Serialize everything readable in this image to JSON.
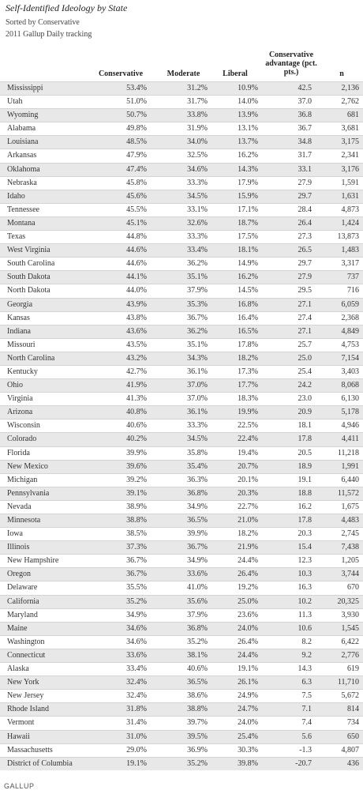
{
  "title": "Self-Identified Ideology by State",
  "subtitle_1": "Sorted by Conservative",
  "subtitle_2": "2011 Gallup Daily tracking",
  "logo": "GALLUP",
  "chart_data": {
    "type": "table",
    "columns": [
      "",
      "Conservative",
      "Moderate",
      "Liberal",
      "Conservative advantage (pct. pts.)",
      "n"
    ],
    "rows": [
      [
        "Mississippi",
        "53.4%",
        "31.2%",
        "10.9%",
        "42.5",
        "2,136"
      ],
      [
        "Utah",
        "51.0%",
        "31.7%",
        "14.0%",
        "37.0",
        "2,762"
      ],
      [
        "Wyoming",
        "50.7%",
        "33.8%",
        "13.9%",
        "36.8",
        "681"
      ],
      [
        "Alabama",
        "49.8%",
        "31.9%",
        "13.1%",
        "36.7",
        "3,681"
      ],
      [
        "Louisiana",
        "48.5%",
        "34.0%",
        "13.7%",
        "34.8",
        "3,175"
      ],
      [
        "Arkansas",
        "47.9%",
        "32.5%",
        "16.2%",
        "31.7",
        "2,341"
      ],
      [
        "Oklahoma",
        "47.4%",
        "34.6%",
        "14.3%",
        "33.1",
        "3,176"
      ],
      [
        "Nebraska",
        "45.8%",
        "33.3%",
        "17.9%",
        "27.9",
        "1,591"
      ],
      [
        "Idaho",
        "45.6%",
        "34.5%",
        "15.9%",
        "29.7",
        "1,631"
      ],
      [
        "Tennessee",
        "45.5%",
        "33.1%",
        "17.1%",
        "28.4",
        "4,873"
      ],
      [
        "Montana",
        "45.1%",
        "32.6%",
        "18.7%",
        "26.4",
        "1,424"
      ],
      [
        "Texas",
        "44.8%",
        "33.3%",
        "17.5%",
        "27.3",
        "13,873"
      ],
      [
        "West Virginia",
        "44.6%",
        "33.4%",
        "18.1%",
        "26.5",
        "1,483"
      ],
      [
        "South Carolina",
        "44.6%",
        "36.2%",
        "14.9%",
        "29.7",
        "3,317"
      ],
      [
        "South Dakota",
        "44.1%",
        "35.1%",
        "16.2%",
        "27.9",
        "737"
      ],
      [
        "North Dakota",
        "44.0%",
        "37.9%",
        "14.5%",
        "29.5",
        "716"
      ],
      [
        "Georgia",
        "43.9%",
        "35.3%",
        "16.8%",
        "27.1",
        "6,059"
      ],
      [
        "Kansas",
        "43.8%",
        "36.7%",
        "16.4%",
        "27.4",
        "2,368"
      ],
      [
        "Indiana",
        "43.6%",
        "36.2%",
        "16.5%",
        "27.1",
        "4,849"
      ],
      [
        "Missouri",
        "43.5%",
        "35.1%",
        "17.8%",
        "25.7",
        "4,753"
      ],
      [
        "North Carolina",
        "43.2%",
        "34.3%",
        "18.2%",
        "25.0",
        "7,154"
      ],
      [
        "Kentucky",
        "42.7%",
        "36.1%",
        "17.3%",
        "25.4",
        "3,403"
      ],
      [
        "Ohio",
        "41.9%",
        "37.0%",
        "17.7%",
        "24.2",
        "8,068"
      ],
      [
        "Virginia",
        "41.3%",
        "37.0%",
        "18.3%",
        "23.0",
        "6,130"
      ],
      [
        "Arizona",
        "40.8%",
        "36.1%",
        "19.9%",
        "20.9",
        "5,178"
      ],
      [
        "Wisconsin",
        "40.6%",
        "33.3%",
        "22.5%",
        "18.1",
        "4,946"
      ],
      [
        "Colorado",
        "40.2%",
        "34.5%",
        "22.4%",
        "17.8",
        "4,411"
      ],
      [
        "Florida",
        "39.9%",
        "35.8%",
        "19.4%",
        "20.5",
        "11,218"
      ],
      [
        "New Mexico",
        "39.6%",
        "35.4%",
        "20.7%",
        "18.9",
        "1,991"
      ],
      [
        "Michigan",
        "39.2%",
        "36.3%",
        "20.1%",
        "19.1",
        "6,440"
      ],
      [
        "Pennsylvania",
        "39.1%",
        "36.8%",
        "20.3%",
        "18.8",
        "11,572"
      ],
      [
        "Nevada",
        "38.9%",
        "34.9%",
        "22.7%",
        "16.2",
        "1,675"
      ],
      [
        "Minnesota",
        "38.8%",
        "36.5%",
        "21.0%",
        "17.8",
        "4,483"
      ],
      [
        "Iowa",
        "38.5%",
        "39.9%",
        "18.2%",
        "20.3",
        "2,745"
      ],
      [
        "Illinois",
        "37.3%",
        "36.7%",
        "21.9%",
        "15.4",
        "7,438"
      ],
      [
        "New Hampshire",
        "36.7%",
        "34.9%",
        "24.4%",
        "12.3",
        "1,205"
      ],
      [
        "Oregon",
        "36.7%",
        "33.6%",
        "26.4%",
        "10.3",
        "3,744"
      ],
      [
        "Delaware",
        "35.5%",
        "41.0%",
        "19.2%",
        "16.3",
        "670"
      ],
      [
        "California",
        "35.2%",
        "35.6%",
        "25.0%",
        "10.2",
        "20,325"
      ],
      [
        "Maryland",
        "34.9%",
        "37.9%",
        "23.6%",
        "11.3",
        "3,930"
      ],
      [
        "Maine",
        "34.6%",
        "36.8%",
        "24.0%",
        "10.6",
        "1,545"
      ],
      [
        "Washington",
        "34.6%",
        "35.2%",
        "26.4%",
        "8.2",
        "6,422"
      ],
      [
        "Connecticut",
        "33.6%",
        "38.1%",
        "24.4%",
        "9.2",
        "2,776"
      ],
      [
        "Alaska",
        "33.4%",
        "40.6%",
        "19.1%",
        "14.3",
        "619"
      ],
      [
        "New York",
        "32.4%",
        "36.5%",
        "26.1%",
        "6.3",
        "11,710"
      ],
      [
        "New Jersey",
        "32.4%",
        "38.6%",
        "24.9%",
        "7.5",
        "5,672"
      ],
      [
        "Rhode Island",
        "31.8%",
        "38.8%",
        "24.7%",
        "7.1",
        "814"
      ],
      [
        "Vermont",
        "31.4%",
        "39.7%",
        "24.0%",
        "7.4",
        "734"
      ],
      [
        "Hawaii",
        "31.0%",
        "39.5%",
        "25.4%",
        "5.6",
        "650"
      ],
      [
        "Massachusetts",
        "29.0%",
        "36.9%",
        "30.3%",
        "-1.3",
        "4,807"
      ],
      [
        "District of Columbia",
        "19.1%",
        "35.2%",
        "39.8%",
        "-20.7",
        "436"
      ]
    ]
  }
}
